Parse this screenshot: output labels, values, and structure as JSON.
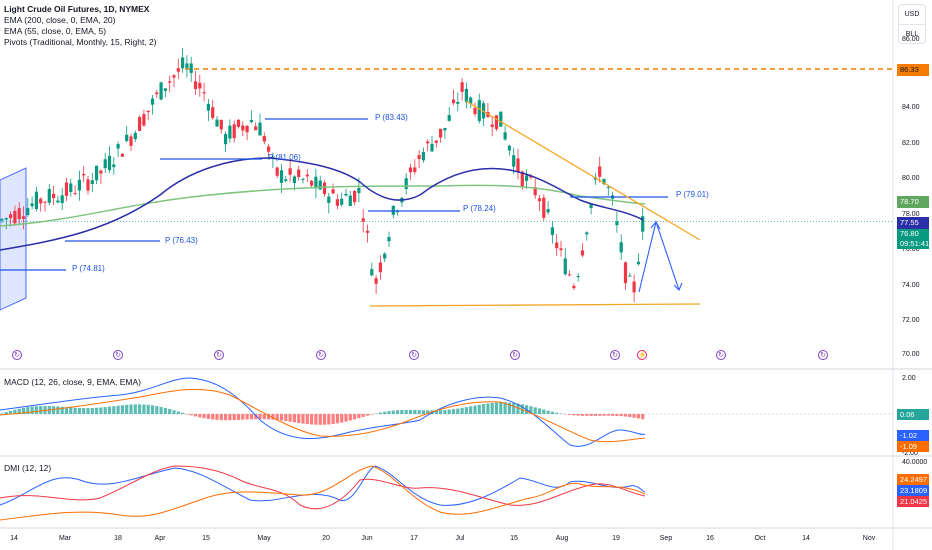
{
  "header": {
    "title": "Light Crude Oil Futures, 1D, NYMEX",
    "indicators": [
      "EMA (200, close, 0, EMA, 20)",
      "EMA (55, close, 0, EMA, 5)",
      "Pivots (Traditional, Monthly, 15, Right, 2)"
    ]
  },
  "scale_buttons": {
    "currency": "USD",
    "unit": "BLL"
  },
  "price_axis": [
    "86.00",
    "84.00",
    "82.00",
    "80.00",
    "78.00",
    "76.00",
    "74.00",
    "72.00",
    "70.00"
  ],
  "price_tags": {
    "resistance": "86.33",
    "ema200": "78.70",
    "ema55": "77.55",
    "last": "76.80",
    "countdown": "09:51:41"
  },
  "pivots": [
    "P (83.43)",
    "P (81.06)",
    "P (78.24)",
    "P (79.01)",
    "P (76.43)",
    "P (74.81)"
  ],
  "macd": {
    "legend": "MACD (12, 26, close, 9, EMA, EMA)",
    "axis": [
      "2.00",
      "-2.00"
    ],
    "tags": {
      "hist": "0.06",
      "macd": "-1.02",
      "signal": "-1.09"
    }
  },
  "dmi": {
    "legend": "DMI (12, 12)",
    "axis": [
      "40.0000"
    ],
    "tags": {
      "adx": "24.2497",
      "plus": "23.1809",
      "minus": "21.0425"
    }
  },
  "time_axis": [
    "14",
    "Mar",
    "18",
    "Apr",
    "15",
    "May",
    "20",
    "Jun",
    "17",
    "Jul",
    "15",
    "Aug",
    "19",
    "Sep",
    "16",
    "Oct",
    "14",
    "Nov"
  ],
  "colors": {
    "up": "#089981",
    "down": "#f23645",
    "ema55": "#2a2fa8",
    "ema200": "#7fc47f",
    "pivot": "#1e53e5",
    "trend": "#f5a623",
    "resistance": "#f57c00"
  }
}
